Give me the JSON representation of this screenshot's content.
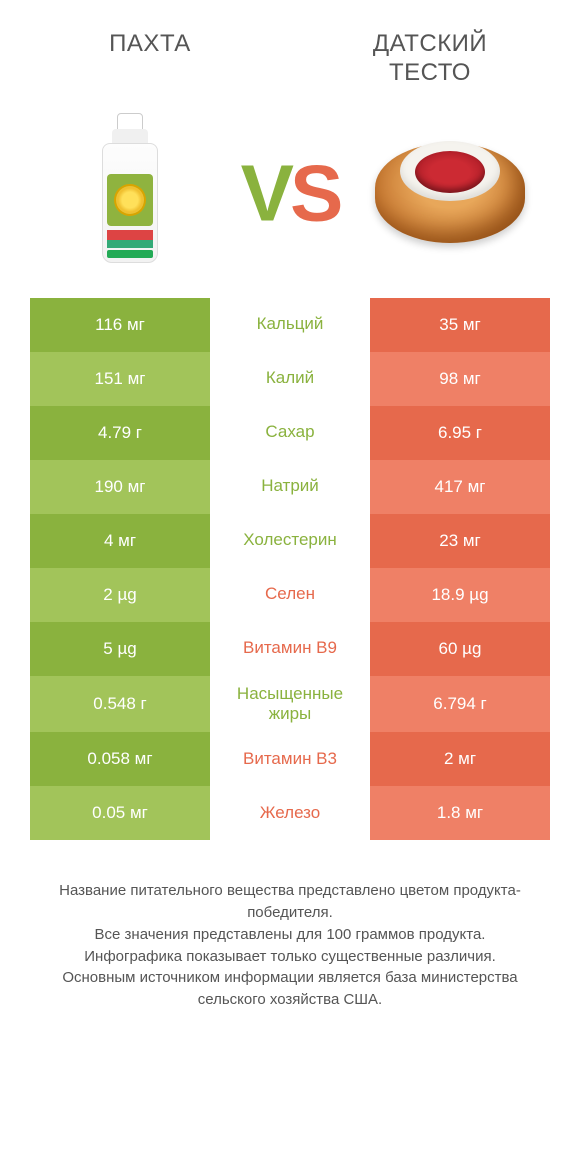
{
  "colors": {
    "green_dark": "#8ab23e",
    "green_light": "#a2c45a",
    "orange_dark": "#e6694c",
    "orange_light": "#ef8066",
    "background": "#ffffff",
    "text": "#555555"
  },
  "header": {
    "left_title": "ПАХТА",
    "right_title": "ДАТСКИЙ ТЕСТО",
    "vs_label": "VS"
  },
  "comparison": {
    "type": "nutrition-comparison-table",
    "left_product": "Пахта",
    "right_product": "Датский тесто",
    "rows": [
      {
        "nutrient": "Кальций",
        "left": "116 мг",
        "right": "35 мг",
        "winner": "left"
      },
      {
        "nutrient": "Калий",
        "left": "151 мг",
        "right": "98 мг",
        "winner": "left"
      },
      {
        "nutrient": "Сахар",
        "left": "4.79 г",
        "right": "6.95 г",
        "winner": "left"
      },
      {
        "nutrient": "Натрий",
        "left": "190 мг",
        "right": "417 мг",
        "winner": "left"
      },
      {
        "nutrient": "Холестерин",
        "left": "4 мг",
        "right": "23 мг",
        "winner": "left"
      },
      {
        "nutrient": "Селен",
        "left": "2 µg",
        "right": "18.9 µg",
        "winner": "right"
      },
      {
        "nutrient": "Витамин B9",
        "left": "5 µg",
        "right": "60 µg",
        "winner": "right"
      },
      {
        "nutrient": "Насыщенные жиры",
        "left": "0.548 г",
        "right": "6.794 г",
        "winner": "left"
      },
      {
        "nutrient": "Витамин B3",
        "left": "0.058 мг",
        "right": "2 мг",
        "winner": "right"
      },
      {
        "nutrient": "Железо",
        "left": "0.05 мг",
        "right": "1.8 мг",
        "winner": "right"
      }
    ]
  },
  "footer": {
    "line1": "Название питательного вещества представлено цветом продукта-победителя.",
    "line2": "Все значения представлены для 100 граммов продукта.",
    "line3": "Инфографика показывает только существенные различия.",
    "line4": "Основным источником информации является база министерства сельского хозяйства США."
  }
}
